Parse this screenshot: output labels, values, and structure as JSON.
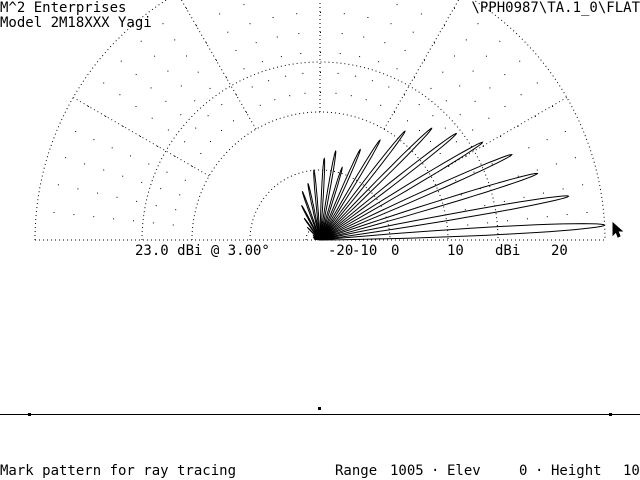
{
  "header": {
    "company": "M^2 Enterprises",
    "model": "Model 2M18XXX Yagi",
    "file_path": "\\PPH0987\\TA.1_0\\FLAT"
  },
  "plot": {
    "peak_label": "23.0 dBi @ 3.00°",
    "scale_ticks": [
      "-20",
      "-10",
      "0",
      "10",
      "20"
    ],
    "unit_label": "dBi",
    "colors": {
      "background": "#ffffff",
      "ink": "#000000"
    }
  },
  "chart_data": {
    "type": "polar-line",
    "title": "",
    "max_gain_dbi": 23.0,
    "max_gain_elevation_deg": 3.0,
    "radial_rings_dbi": [
      -20,
      -10,
      0,
      10,
      20
    ],
    "elevation_spokes_deg": [
      30,
      60,
      90,
      120,
      150
    ],
    "lobes": [
      {
        "elevation_deg": 3,
        "gain_dbi": 23.0,
        "width_deg": 4.5
      },
      {
        "elevation_deg": 10,
        "gain_dbi": 21.0,
        "width_deg": 4.0
      },
      {
        "elevation_deg": 17,
        "gain_dbi": 18.5,
        "width_deg": 4.0
      },
      {
        "elevation_deg": 24,
        "gain_dbi": 15.5,
        "width_deg": 4.0
      },
      {
        "elevation_deg": 31,
        "gain_dbi": 12.0,
        "width_deg": 4.0
      },
      {
        "elevation_deg": 38,
        "gain_dbi": 9.0,
        "width_deg": 4.0
      },
      {
        "elevation_deg": 45,
        "gain_dbi": 6.0,
        "width_deg": 4.0
      },
      {
        "elevation_deg": 52,
        "gain_dbi": 2.0,
        "width_deg": 4.0
      },
      {
        "elevation_deg": 59,
        "gain_dbi": -2.0,
        "width_deg": 4.0
      },
      {
        "elevation_deg": 66,
        "gain_dbi": -5.0,
        "width_deg": 4.0
      },
      {
        "elevation_deg": 73,
        "gain_dbi": -9.0,
        "width_deg": 4.0
      },
      {
        "elevation_deg": 80,
        "gain_dbi": -6.5,
        "width_deg": 4.0
      },
      {
        "elevation_deg": 87,
        "gain_dbi": -8.0,
        "width_deg": 4.0
      },
      {
        "elevation_deg": 95,
        "gain_dbi": -10.0,
        "width_deg": 4.0
      },
      {
        "elevation_deg": 102,
        "gain_dbi": -12.0,
        "width_deg": 4.0
      },
      {
        "elevation_deg": 110,
        "gain_dbi": -13.0,
        "width_deg": 4.0
      },
      {
        "elevation_deg": 118,
        "gain_dbi": -15.0,
        "width_deg": 4.0
      },
      {
        "elevation_deg": 126,
        "gain_dbi": -17.0,
        "width_deg": 4.0
      },
      {
        "elevation_deg": 135,
        "gain_dbi": -18.5,
        "width_deg": 4.0
      },
      {
        "elevation_deg": 144,
        "gain_dbi": -20.0,
        "width_deg": 4.0
      },
      {
        "elevation_deg": 153,
        "gain_dbi": -21.0,
        "width_deg": 4.0
      },
      {
        "elevation_deg": 162,
        "gain_dbi": -22.0,
        "width_deg": 4.0
      },
      {
        "elevation_deg": 171,
        "gain_dbi": -23.0,
        "width_deg": 4.0
      }
    ]
  },
  "status_bar": {
    "prompt": "Mark pattern for ray tracing",
    "range_label": "Range",
    "range_value": "1005",
    "elev_label": "Elev",
    "elev_value": "0",
    "height_label": "Height",
    "height_value": "10",
    "separator": "·"
  }
}
